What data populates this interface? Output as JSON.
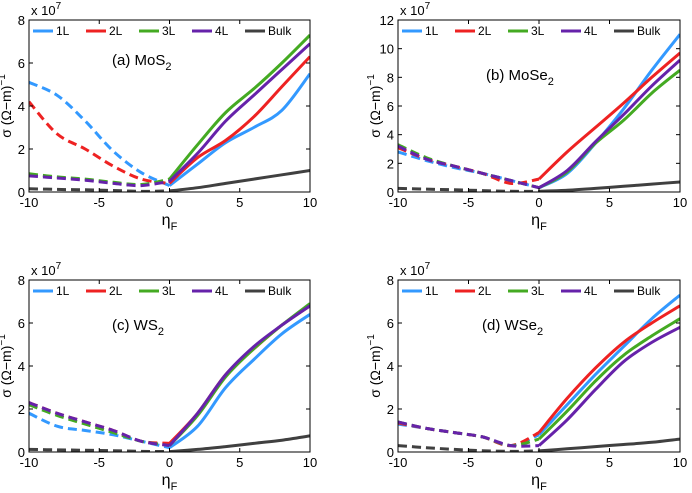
{
  "figure": {
    "series_colors": {
      "1L": "#3399ff",
      "2L": "#ee2222",
      "3L": "#44aa22",
      "4L": "#6622aa",
      "Bulk": "#404040"
    }
  },
  "chart_data": [
    {
      "type": "line",
      "title": "(a) MoS",
      "title_sub": "2",
      "ylabel": "σ (Ω−m)",
      "ylabel_sup": "−1",
      "xlabel": "η",
      "xlabel_sub": "F",
      "multiplier": "x 10",
      "multiplier_exp": "7",
      "xlim": [
        -10,
        10
      ],
      "ylim": [
        0,
        8
      ],
      "xticks": [
        -10,
        -5,
        0,
        5,
        10
      ],
      "yticks": [
        0,
        2,
        4,
        6,
        8
      ],
      "legend": [
        "1L",
        "2L",
        "3L",
        "4L",
        "Bulk"
      ],
      "legend_position": "top-left",
      "split_x": 0,
      "series": [
        {
          "name": "1L",
          "color": "#3399ff",
          "x": [
            -10,
            -8,
            -6,
            -4,
            -2,
            0,
            2,
            4,
            6,
            8,
            10
          ],
          "y": [
            5.1,
            4.5,
            3.3,
            1.9,
            0.9,
            0.3,
            1.3,
            2.3,
            3.0,
            3.8,
            5.5
          ]
        },
        {
          "name": "2L",
          "color": "#ee2222",
          "x": [
            -10,
            -8,
            -6,
            -4,
            -2,
            0,
            2,
            4,
            6,
            8,
            10
          ],
          "y": [
            4.2,
            2.7,
            2.0,
            1.2,
            0.6,
            0.4,
            1.6,
            2.4,
            3.5,
            4.9,
            6.3
          ]
        },
        {
          "name": "3L",
          "color": "#44aa22",
          "x": [
            -10,
            -8,
            -6,
            -4,
            -2,
            0,
            2,
            4,
            6,
            8,
            10
          ],
          "y": [
            0.85,
            0.7,
            0.6,
            0.45,
            0.35,
            0.6,
            2.2,
            3.7,
            4.8,
            6.0,
            7.3
          ]
        },
        {
          "name": "4L",
          "color": "#6622aa",
          "x": [
            -10,
            -8,
            -6,
            -4,
            -2,
            0,
            2,
            4,
            6,
            8,
            10
          ],
          "y": [
            0.75,
            0.65,
            0.55,
            0.4,
            0.3,
            0.5,
            1.8,
            3.3,
            4.5,
            5.7,
            6.9
          ]
        },
        {
          "name": "Bulk",
          "color": "#404040",
          "x": [
            -10,
            -8,
            -6,
            -4,
            -2,
            0,
            2,
            4,
            6,
            8,
            10
          ],
          "y": [
            0.15,
            0.12,
            0.1,
            0.07,
            0.03,
            0.05,
            0.2,
            0.4,
            0.6,
            0.8,
            1.0
          ]
        }
      ]
    },
    {
      "type": "line",
      "title": "(b) MoSe",
      "title_sub": "2",
      "ylabel": "σ (Ω−m)",
      "ylabel_sup": "−1",
      "xlabel": "η",
      "xlabel_sub": "F",
      "multiplier": "x 10",
      "multiplier_exp": "7",
      "xlim": [
        -10,
        10
      ],
      "ylim": [
        0,
        12
      ],
      "xticks": [
        -10,
        -5,
        0,
        5,
        10
      ],
      "yticks": [
        0,
        2,
        4,
        6,
        8,
        10,
        12
      ],
      "legend": [
        "1L",
        "2L",
        "3L",
        "4L",
        "Bulk"
      ],
      "legend_position": "top-left",
      "split_x": 0,
      "series": [
        {
          "name": "1L",
          "color": "#3399ff",
          "x": [
            -10,
            -8,
            -6,
            -4,
            -2,
            0,
            2,
            4,
            6,
            8,
            10
          ],
          "y": [
            2.8,
            2.2,
            1.7,
            1.3,
            0.8,
            0.3,
            1.3,
            3.4,
            5.8,
            8.5,
            11.0
          ]
        },
        {
          "name": "2L",
          "color": "#ee2222",
          "x": [
            -10,
            -8,
            -6,
            -4,
            -2,
            0,
            2,
            4,
            6,
            8,
            10
          ],
          "y": [
            3.1,
            2.3,
            1.8,
            1.3,
            0.6,
            0.9,
            2.8,
            4.5,
            6.2,
            8.0,
            9.7
          ]
        },
        {
          "name": "3L",
          "color": "#44aa22",
          "x": [
            -10,
            -8,
            -6,
            -4,
            -2,
            0,
            2,
            4,
            6,
            8,
            10
          ],
          "y": [
            3.3,
            2.4,
            1.8,
            1.3,
            0.8,
            0.3,
            1.4,
            3.4,
            5.0,
            6.9,
            8.5
          ]
        },
        {
          "name": "4L",
          "color": "#6622aa",
          "x": [
            -10,
            -8,
            -6,
            -4,
            -2,
            0,
            2,
            4,
            6,
            8,
            10
          ],
          "y": [
            3.2,
            2.3,
            1.8,
            1.3,
            0.8,
            0.3,
            1.5,
            3.5,
            5.4,
            7.4,
            9.2
          ]
        },
        {
          "name": "Bulk",
          "color": "#404040",
          "x": [
            -10,
            -8,
            -6,
            -4,
            -2,
            0,
            2,
            4,
            6,
            8,
            10
          ],
          "y": [
            0.25,
            0.2,
            0.15,
            0.1,
            0.05,
            0.05,
            0.12,
            0.25,
            0.4,
            0.55,
            0.7
          ]
        }
      ]
    },
    {
      "type": "line",
      "title": "(c) WS",
      "title_sub": "2",
      "ylabel": "σ (Ω−m)",
      "ylabel_sup": "−1",
      "xlabel": "η",
      "xlabel_sub": "F",
      "multiplier": "x 10",
      "multiplier_exp": "7",
      "xlim": [
        -10,
        10
      ],
      "ylim": [
        0,
        8
      ],
      "xticks": [
        -10,
        -5,
        0,
        5,
        10
      ],
      "yticks": [
        0,
        2,
        4,
        6,
        8
      ],
      "legend": [
        "1L",
        "2L",
        "3L",
        "4L",
        "Bulk"
      ],
      "legend_position": "top-left",
      "split_x": 0,
      "series": [
        {
          "name": "1L",
          "color": "#3399ff",
          "x": [
            -10,
            -8,
            -6,
            -4,
            -2,
            0,
            2,
            4,
            6,
            8,
            10
          ],
          "y": [
            1.8,
            1.2,
            1.0,
            0.8,
            0.5,
            0.2,
            1.2,
            3.0,
            4.3,
            5.5,
            6.4
          ]
        },
        {
          "name": "2L",
          "color": "#ee2222",
          "x": [
            -10,
            -8,
            -6,
            -4,
            -2,
            0,
            2,
            4,
            6,
            8,
            10
          ],
          "y": [
            2.3,
            1.8,
            1.4,
            1.0,
            0.5,
            0.4,
            1.8,
            3.6,
            4.8,
            5.9,
            6.8
          ]
        },
        {
          "name": "3L",
          "color": "#44aa22",
          "x": [
            -10,
            -8,
            -6,
            -4,
            -2,
            0,
            2,
            4,
            6,
            8,
            10
          ],
          "y": [
            2.2,
            1.7,
            1.3,
            0.9,
            0.5,
            0.3,
            1.7,
            3.5,
            4.8,
            5.9,
            6.9
          ]
        },
        {
          "name": "4L",
          "color": "#6622aa",
          "x": [
            -10,
            -8,
            -6,
            -4,
            -2,
            0,
            2,
            4,
            6,
            8,
            10
          ],
          "y": [
            2.3,
            1.8,
            1.4,
            1.0,
            0.5,
            0.3,
            1.8,
            3.6,
            4.9,
            5.9,
            6.8
          ]
        },
        {
          "name": "Bulk",
          "color": "#404040",
          "x": [
            -10,
            -8,
            -6,
            -4,
            -2,
            0,
            2,
            4,
            6,
            8,
            10
          ],
          "y": [
            0.12,
            0.1,
            0.08,
            0.06,
            0.03,
            0.02,
            0.12,
            0.25,
            0.4,
            0.55,
            0.75
          ]
        }
      ]
    },
    {
      "type": "line",
      "title": "(d) WSe",
      "title_sub": "2",
      "ylabel": "σ (Ω−m)",
      "ylabel_sup": "−1",
      "xlabel": "η",
      "xlabel_sub": "F",
      "multiplier": "x 10",
      "multiplier_exp": "7",
      "xlim": [
        -10,
        10
      ],
      "ylim": [
        0,
        8
      ],
      "xticks": [
        -10,
        -5,
        0,
        5,
        10
      ],
      "yticks": [
        0,
        2,
        4,
        6,
        8
      ],
      "legend": [
        "1L",
        "2L",
        "3L",
        "4L",
        "Bulk"
      ],
      "legend_position": "top-left",
      "split_x": 0,
      "series": [
        {
          "name": "1L",
          "color": "#3399ff",
          "x": [
            -10,
            -8,
            -6,
            -4,
            -2,
            0,
            2,
            4,
            6,
            8,
            10
          ],
          "y": [
            1.3,
            1.1,
            0.9,
            0.7,
            0.3,
            0.8,
            2.2,
            3.6,
            4.9,
            6.2,
            7.3
          ]
        },
        {
          "name": "2L",
          "color": "#ee2222",
          "x": [
            -10,
            -8,
            -6,
            -4,
            -2,
            0,
            2,
            4,
            6,
            8,
            10
          ],
          "y": [
            1.35,
            1.1,
            0.9,
            0.7,
            0.3,
            0.9,
            2.5,
            3.9,
            5.1,
            6.0,
            6.8
          ]
        },
        {
          "name": "3L",
          "color": "#44aa22",
          "x": [
            -10,
            -8,
            -6,
            -4,
            -2,
            0,
            2,
            4,
            6,
            8,
            10
          ],
          "y": [
            1.4,
            1.1,
            0.9,
            0.7,
            0.3,
            0.6,
            1.9,
            3.3,
            4.5,
            5.4,
            6.2
          ]
        },
        {
          "name": "4L",
          "color": "#6622aa",
          "x": [
            -10,
            -8,
            -6,
            -4,
            -2,
            0,
            2,
            4,
            6,
            8,
            10
          ],
          "y": [
            1.4,
            1.1,
            0.9,
            0.7,
            0.3,
            0.3,
            1.5,
            2.9,
            4.2,
            5.1,
            5.8
          ]
        },
        {
          "name": "Bulk",
          "color": "#404040",
          "x": [
            -10,
            -8,
            -6,
            -4,
            -2,
            0,
            2,
            4,
            6,
            8,
            10
          ],
          "y": [
            0.3,
            0.2,
            0.12,
            0.06,
            0.03,
            0.05,
            0.15,
            0.25,
            0.35,
            0.45,
            0.6
          ]
        }
      ]
    }
  ]
}
